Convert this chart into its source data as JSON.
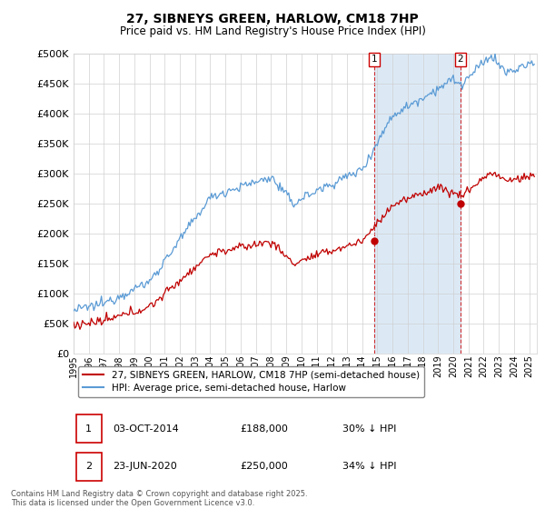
{
  "title": "27, SIBNEYS GREEN, HARLOW, CM18 7HP",
  "subtitle": "Price paid vs. HM Land Registry's House Price Index (HPI)",
  "ylim": [
    0,
    500000
  ],
  "xlim_start": 1995.0,
  "xlim_end": 2025.5,
  "hpi_color": "#5b9bd5",
  "hpi_fill_color": "#dce9f5",
  "price_color": "#c00000",
  "marker1_date": 2014.79,
  "marker2_date": 2020.48,
  "marker1_price": 188000,
  "marker2_price": 250000,
  "legend_label1": "27, SIBNEYS GREEN, HARLOW, CM18 7HP (semi-detached house)",
  "legend_label2": "HPI: Average price, semi-detached house, Harlow",
  "footnote": "Contains HM Land Registry data © Crown copyright and database right 2025.\nThis data is licensed under the Open Government Licence v3.0.",
  "background_color": "#ffffff",
  "grid_color": "#d0d0d0"
}
